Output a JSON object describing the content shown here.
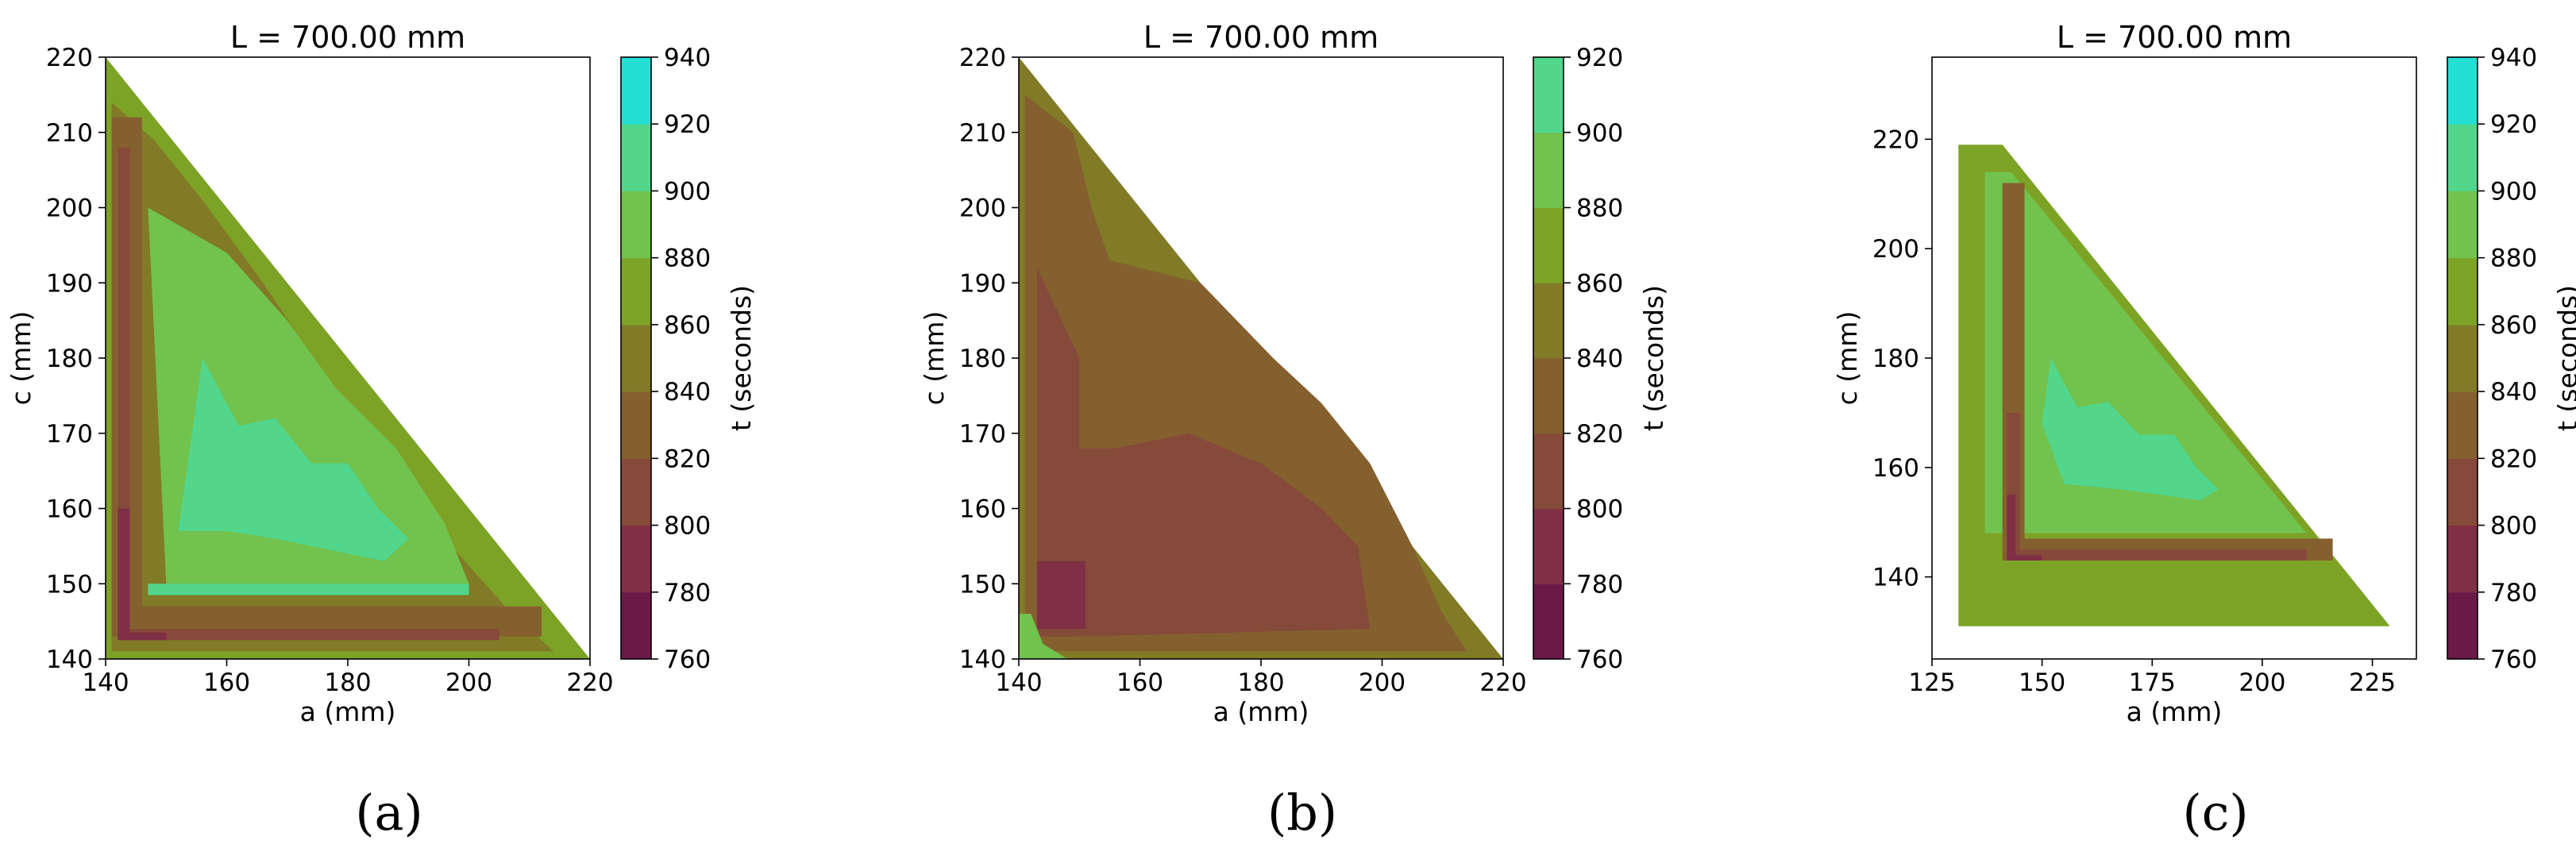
{
  "chart_data": [
    {
      "type": "heatmap",
      "panel_label": "(a)",
      "title": "L = 700.00 mm",
      "xlabel": "a (mm)",
      "ylabel": "c (mm)",
      "colorbar_label": "t (seconds)",
      "xlim": [
        140,
        220
      ],
      "ylim": [
        140,
        220
      ],
      "xticks": [
        140,
        160,
        180,
        200,
        220
      ],
      "yticks": [
        140,
        150,
        160,
        170,
        180,
        190,
        200,
        210,
        220
      ],
      "colorbar_ticks": [
        760,
        780,
        800,
        820,
        840,
        860,
        880,
        900,
        920,
        940
      ],
      "domain": "a + c <= 360",
      "regions": [
        {
          "t_level": 870,
          "polygon": [
            [
              140,
              220
            ],
            [
              220,
              140
            ],
            [
              140,
              140
            ]
          ]
        },
        {
          "t_level": 850,
          "polygon": [
            [
              141,
              214
            ],
            [
              141,
              141
            ],
            [
              214,
              141
            ],
            [
              206,
              147
            ],
            [
              196,
              156
            ],
            [
              186,
              166
            ],
            [
              176,
              178
            ],
            [
              166,
              190
            ],
            [
              156,
              201
            ],
            [
              148,
              209
            ]
          ]
        },
        {
          "t_level": 890,
          "polygon": [
            [
              147,
              200
            ],
            [
              150,
              150
            ],
            [
              200,
              150
            ],
            [
              196,
              158
            ],
            [
              188,
              168
            ],
            [
              178,
              176
            ],
            [
              170,
              185
            ],
            [
              160,
              194
            ]
          ]
        },
        {
          "t_level": 910,
          "polygon": [
            [
              152,
              157
            ],
            [
              156,
              180
            ],
            [
              162,
              171
            ],
            [
              168,
              172
            ],
            [
              174,
              166
            ],
            [
              180,
              166
            ],
            [
              185,
              160
            ],
            [
              190,
              156
            ],
            [
              186,
              153
            ],
            [
              168,
              156
            ],
            [
              160,
              157
            ]
          ]
        },
        {
          "t_level": 910,
          "polygon": [
            [
              147,
              150
            ],
            [
              147,
              148.5
            ],
            [
              200,
              148.5
            ],
            [
              200,
              150
            ]
          ]
        },
        {
          "t_level": 830,
          "polygon": [
            [
              141,
              212
            ],
            [
              146,
              212
            ],
            [
              146,
              147
            ],
            [
              212,
              147
            ],
            [
              212,
              143
            ],
            [
              141,
              143
            ]
          ]
        },
        {
          "t_level": 810,
          "polygon": [
            [
              142,
              208
            ],
            [
              144,
              208
            ],
            [
              144,
              144
            ],
            [
              205,
              144
            ],
            [
              205,
              142.5
            ],
            [
              142,
              142.5
            ]
          ]
        },
        {
          "t_level": 790,
          "polygon": [
            [
              142,
              160
            ],
            [
              144,
              160
            ],
            [
              144,
              143.5
            ],
            [
              150,
              143.5
            ],
            [
              150,
              142.5
            ],
            [
              142,
              142.5
            ]
          ]
        }
      ]
    },
    {
      "type": "heatmap",
      "panel_label": "(b)",
      "title": "L = 700.00 mm",
      "xlabel": "a (mm)",
      "ylabel": "c (mm)",
      "colorbar_label": "t (seconds)",
      "xlim": [
        140,
        220
      ],
      "ylim": [
        140,
        220
      ],
      "xticks": [
        140,
        160,
        180,
        200,
        220
      ],
      "yticks": [
        140,
        150,
        160,
        170,
        180,
        190,
        200,
        210,
        220
      ],
      "colorbar_ticks": [
        760,
        780,
        800,
        820,
        840,
        860,
        880,
        900,
        920
      ],
      "domain": "a + c <= 360",
      "regions": [
        {
          "t_level": 850,
          "polygon": [
            [
              140,
              220
            ],
            [
              220,
              140
            ],
            [
              140,
              140
            ]
          ]
        },
        {
          "t_level": 830,
          "polygon": [
            [
              141,
              215
            ],
            [
              149,
              210
            ],
            [
              152,
              200
            ],
            [
              155,
              193
            ],
            [
              170,
              190
            ],
            [
              182,
              180
            ],
            [
              190,
              174
            ],
            [
              198,
              166
            ],
            [
              205,
              155
            ],
            [
              210,
              146
            ],
            [
              214,
              141
            ],
            [
              141,
              141
            ]
          ]
        },
        {
          "t_level": 810,
          "polygon": [
            [
              143,
              192
            ],
            [
              150,
              180
            ],
            [
              150,
              168
            ],
            [
              156,
              168
            ],
            [
              168,
              170
            ],
            [
              180,
              166
            ],
            [
              190,
              160
            ],
            [
              196,
              155
            ],
            [
              198,
              144
            ],
            [
              150,
              143
            ],
            [
              143,
              143
            ]
          ]
        },
        {
          "t_level": 790,
          "polygon": [
            [
              143,
              153
            ],
            [
              151,
              153
            ],
            [
              151,
              144
            ],
            [
              143,
              144
            ]
          ]
        },
        {
          "t_level": 890,
          "polygon": [
            [
              140,
              146
            ],
            [
              142,
              146
            ],
            [
              144,
              142
            ],
            [
              148,
              140
            ],
            [
              140,
              140
            ]
          ]
        }
      ]
    },
    {
      "type": "heatmap",
      "panel_label": "(c)",
      "title": "L = 700.00 mm",
      "xlabel": "a (mm)",
      "ylabel": "c (mm)",
      "colorbar_label": "t (seconds)",
      "xlim": [
        125,
        235
      ],
      "ylim": [
        125,
        235
      ],
      "xticks": [
        125,
        150,
        175,
        200,
        225
      ],
      "yticks": [
        140,
        160,
        180,
        200,
        220
      ],
      "colorbar_ticks": [
        760,
        780,
        800,
        820,
        840,
        860,
        880,
        900,
        920,
        940
      ],
      "domain": "a, c >= 131; a <= 229; c <= 219; a + c <= 360",
      "regions": [
        {
          "t_level": 870,
          "polygon": [
            [
              131,
              219
            ],
            [
              141,
              219
            ],
            [
              229,
              131
            ],
            [
              131,
              131
            ]
          ]
        },
        {
          "t_level": 890,
          "polygon": [
            [
              137,
              214
            ],
            [
              143,
              214
            ],
            [
              205,
              153
            ],
            [
              210,
              148
            ],
            [
              137,
              148
            ]
          ]
        },
        {
          "t_level": 910,
          "polygon": [
            [
              150,
              168
            ],
            [
              152,
              180
            ],
            [
              158,
              171
            ],
            [
              165,
              172
            ],
            [
              172,
              166
            ],
            [
              180,
              166
            ],
            [
              185,
              160
            ],
            [
              190,
              156
            ],
            [
              186,
              154
            ],
            [
              168,
              156
            ],
            [
              155,
              157
            ]
          ]
        },
        {
          "t_level": 830,
          "polygon": [
            [
              141,
              212
            ],
            [
              146,
              212
            ],
            [
              146,
              147
            ],
            [
              216,
              147
            ],
            [
              216,
              143
            ],
            [
              141,
              143
            ]
          ]
        },
        {
          "t_level": 810,
          "polygon": [
            [
              142,
              170
            ],
            [
              145,
              170
            ],
            [
              145,
              145
            ],
            [
              210,
              145
            ],
            [
              210,
              143
            ],
            [
              142,
              143
            ]
          ]
        },
        {
          "t_level": 790,
          "polygon": [
            [
              142,
              155
            ],
            [
              144,
              155
            ],
            [
              144,
              144
            ],
            [
              150,
              144
            ],
            [
              150,
              143
            ],
            [
              142,
              143
            ]
          ]
        }
      ]
    }
  ],
  "colormap": [
    {
      "range": [
        760,
        780
      ],
      "color": "#6b1a47"
    },
    {
      "range": [
        780,
        800
      ],
      "color": "#7f2f46"
    },
    {
      "range": [
        800,
        820
      ],
      "color": "#854a3a"
    },
    {
      "range": [
        820,
        840
      ],
      "color": "#85602f"
    },
    {
      "range": [
        840,
        860
      ],
      "color": "#817b27"
    },
    {
      "range": [
        860,
        880
      ],
      "color": "#7da326"
    },
    {
      "range": [
        880,
        900
      ],
      "color": "#72c24e"
    },
    {
      "range": [
        900,
        920
      ],
      "color": "#52d68c"
    },
    {
      "range": [
        920,
        940
      ],
      "color": "#24e0d4"
    }
  ]
}
